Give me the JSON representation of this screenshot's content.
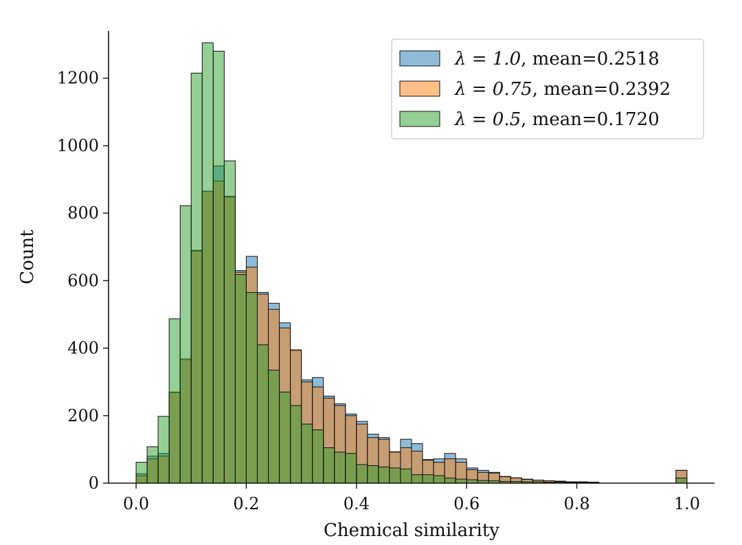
{
  "chart_data": {
    "type": "histogram",
    "xlabel": "Chemical similarity",
    "ylabel": "Count",
    "xlim": [
      -0.05,
      1.05
    ],
    "ylim": [
      0,
      1340
    ],
    "bin_width": 0.02,
    "bin_starts": [
      0.0,
      0.02,
      0.04,
      0.06,
      0.08,
      0.1,
      0.12,
      0.14,
      0.16,
      0.18,
      0.2,
      0.22,
      0.24,
      0.26,
      0.28,
      0.3,
      0.32,
      0.34,
      0.36,
      0.38,
      0.4,
      0.42,
      0.44,
      0.46,
      0.48,
      0.5,
      0.52,
      0.54,
      0.56,
      0.58,
      0.6,
      0.62,
      0.64,
      0.66,
      0.68,
      0.7,
      0.72,
      0.74,
      0.76,
      0.78,
      0.8,
      0.82,
      0.84,
      0.86,
      0.88,
      0.9,
      0.92,
      0.94,
      0.96,
      0.98
    ],
    "xticks": [
      "0.0",
      "0.2",
      "0.4",
      "0.6",
      "0.8",
      "1.0"
    ],
    "xtick_values": [
      0.0,
      0.2,
      0.4,
      0.6,
      0.8,
      1.0
    ],
    "yticks": [
      "0",
      "200",
      "400",
      "600",
      "800",
      "1000",
      "1200"
    ],
    "ytick_values": [
      0,
      200,
      400,
      600,
      800,
      1000,
      1200
    ],
    "series": [
      {
        "name": "λ = 1.0",
        "legend_rest": ", mean=0.2518",
        "color": "#1f77b4",
        "values": [
          28,
          80,
          88,
          268,
          365,
          690,
          865,
          940,
          850,
          630,
          672,
          565,
          533,
          475,
          393,
          306,
          313,
          258,
          235,
          205,
          183,
          145,
          135,
          93,
          130,
          117,
          70,
          72,
          88,
          72,
          45,
          38,
          32,
          20,
          15,
          12,
          9,
          7,
          6,
          4,
          4,
          3,
          0,
          0,
          0,
          0,
          0,
          0,
          0,
          38
        ]
      },
      {
        "name": "λ = 0.75",
        "legend_rest": ", mean=0.2392",
        "color": "#ff7f0e",
        "values": [
          22,
          72,
          80,
          270,
          368,
          688,
          865,
          895,
          848,
          625,
          640,
          560,
          515,
          460,
          395,
          300,
          285,
          252,
          230,
          200,
          175,
          135,
          130,
          92,
          105,
          95,
          68,
          62,
          72,
          62,
          40,
          32,
          30,
          19,
          16,
          11,
          9,
          7,
          5,
          4,
          3,
          3,
          0,
          0,
          0,
          0,
          0,
          0,
          0,
          38
        ]
      },
      {
        "name": "λ = 0.5",
        "legend_rest": ", mean=0.1720",
        "color": "#2ca02c",
        "values": [
          62,
          108,
          198,
          487,
          822,
          1215,
          1305,
          1280,
          955,
          618,
          565,
          410,
          335,
          270,
          230,
          175,
          158,
          105,
          92,
          88,
          55,
          52,
          48,
          45,
          42,
          25,
          25,
          22,
          15,
          12,
          10,
          8,
          7,
          5,
          5,
          4,
          4,
          3,
          3,
          2,
          2,
          1,
          0,
          0,
          0,
          0,
          0,
          0,
          0,
          15
        ]
      }
    ],
    "legend_position": "top-right"
  }
}
